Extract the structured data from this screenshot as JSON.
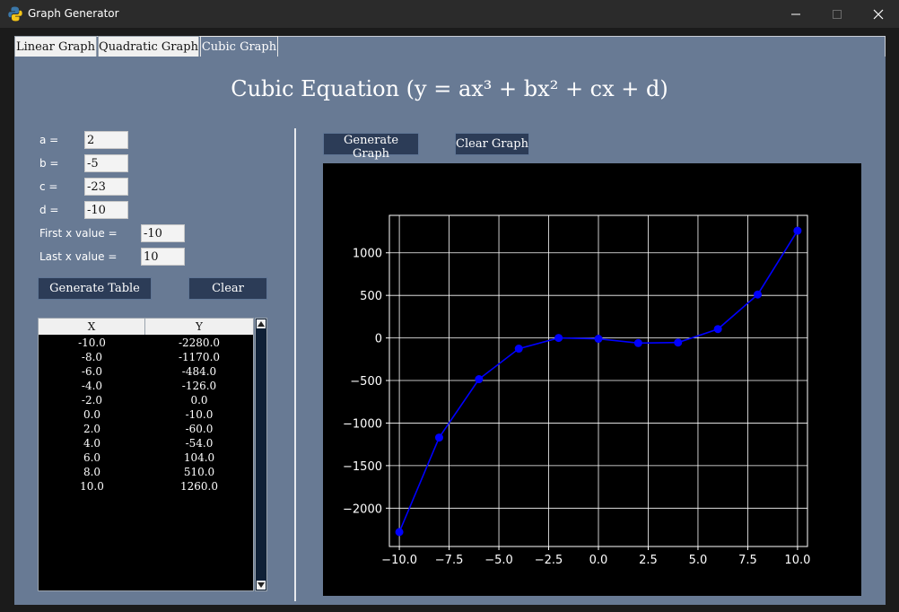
{
  "window": {
    "title": "Graph Generator",
    "icon": "python-icon"
  },
  "tabs": [
    {
      "label": "Linear Graph",
      "active": false
    },
    {
      "label": "Quadratic Graph",
      "active": false
    },
    {
      "label": "Cubic Graph",
      "active": true
    }
  ],
  "heading": "Cubic Equation (y = ax³ + bx² + cx + d)",
  "inputs": {
    "a": {
      "label": "a =",
      "value": "2"
    },
    "b": {
      "label": "b =",
      "value": "-5"
    },
    "c": {
      "label": "c =",
      "value": "-23"
    },
    "d": {
      "label": "d =",
      "value": "-10"
    },
    "first_x": {
      "label": "First x value =",
      "value": "-10"
    },
    "last_x": {
      "label": "Last x value =",
      "value": "10"
    }
  },
  "buttons": {
    "generate_table": "Generate Table",
    "clear": "Clear",
    "generate_graph": "Generate Graph",
    "clear_graph": "Clear Graph"
  },
  "table": {
    "columns": [
      "X",
      "Y"
    ],
    "rows": [
      [
        "-10.0",
        "-2280.0"
      ],
      [
        "-8.0",
        "-1170.0"
      ],
      [
        "-6.0",
        "-484.0"
      ],
      [
        "-4.0",
        "-126.0"
      ],
      [
        "-2.0",
        "0.0"
      ],
      [
        "0.0",
        "-10.0"
      ],
      [
        "2.0",
        "-60.0"
      ],
      [
        "4.0",
        "-54.0"
      ],
      [
        "6.0",
        "104.0"
      ],
      [
        "8.0",
        "510.0"
      ],
      [
        "10.0",
        "1260.0"
      ]
    ]
  },
  "colors": {
    "panel": "#687a94",
    "button": "#2c3c57",
    "series": "#0000ff"
  },
  "chart_data": {
    "type": "line",
    "title": "",
    "xlabel": "",
    "ylabel": "",
    "x": [
      -10,
      -8,
      -6,
      -4,
      -2,
      0,
      2,
      4,
      6,
      8,
      10
    ],
    "series": [
      {
        "values": [
          -2280,
          -1170,
          -484,
          -126,
          0,
          -10,
          -60,
          -54,
          104,
          510,
          1260
        ]
      }
    ],
    "xlim": [
      -10.5,
      10.5
    ],
    "ylim": [
      -2450,
      1440
    ],
    "xticks": [
      -10.0,
      -7.5,
      -5.0,
      -2.5,
      0.0,
      2.5,
      5.0,
      7.5,
      10.0
    ],
    "xtick_labels": [
      "−10.0",
      "−7.5",
      "−5.0",
      "−2.5",
      "0.0",
      "2.5",
      "5.0",
      "7.5",
      "10.0"
    ],
    "yticks": [
      -2000,
      -1500,
      -1000,
      -500,
      0,
      500,
      1000
    ],
    "ytick_labels": [
      "−2000",
      "−1500",
      "−1000",
      "−500",
      "0",
      "500",
      "1000"
    ],
    "grid": true,
    "markers": true,
    "background": "#000000",
    "foreground": "#ffffff"
  }
}
